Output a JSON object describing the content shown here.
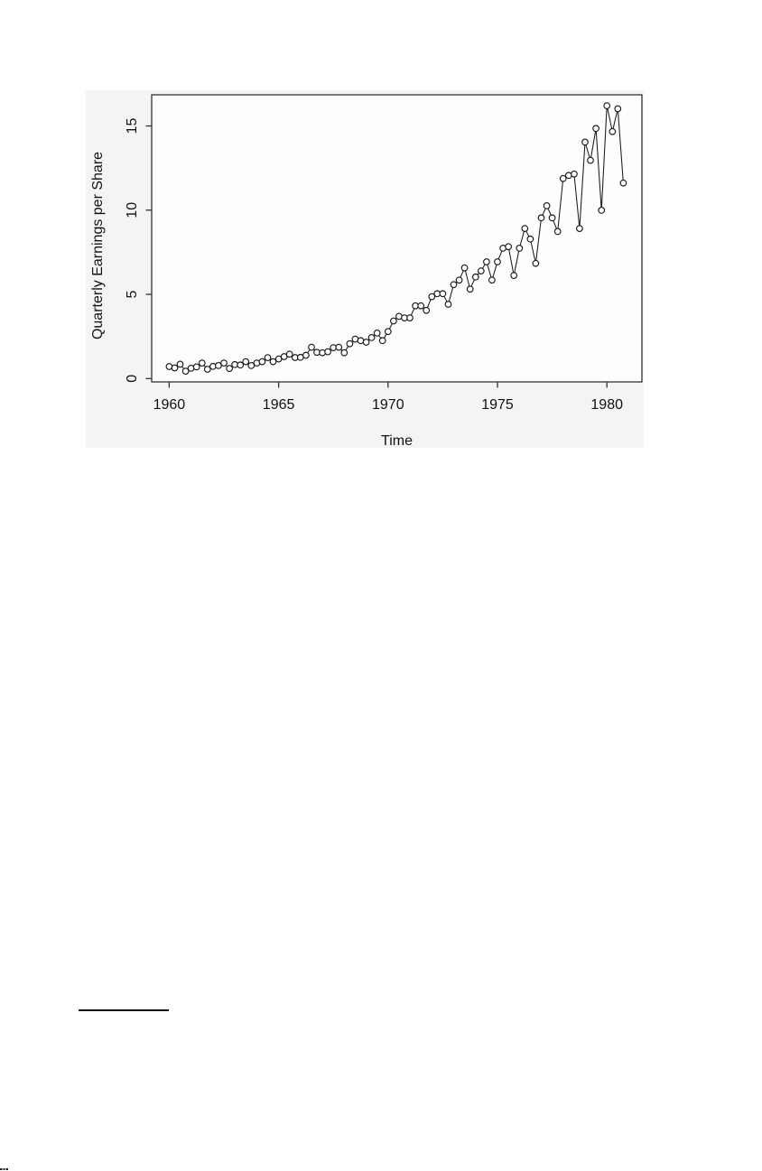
{
  "page": {
    "background": "#ffffff"
  },
  "chart_data": {
    "type": "line",
    "title": "",
    "xlabel": "Time",
    "ylabel": "Quarterly Earnings per Share",
    "x_ticks": [
      1960,
      1965,
      1970,
      1975,
      1980
    ],
    "y_ticks": [
      0,
      5,
      10,
      15
    ],
    "xlim": [
      1959.2,
      1981.6
    ],
    "ylim": [
      -0.2,
      16.85
    ],
    "grid": false,
    "legend": null,
    "marker": "open-circle",
    "line_color": "#1a1a1a",
    "axis_color": "#333333",
    "panel_background": "#fdfdfd",
    "figure_background": "#f4f4f4",
    "series": [
      {
        "name": "Quarterly earnings per share",
        "x_start": 1960,
        "x_step": 0.25,
        "values": [
          0.71,
          0.63,
          0.85,
          0.44,
          0.61,
          0.69,
          0.92,
          0.55,
          0.72,
          0.77,
          0.92,
          0.6,
          0.83,
          0.8,
          1.0,
          0.77,
          0.92,
          1.0,
          1.24,
          1.0,
          1.16,
          1.3,
          1.45,
          1.25,
          1.26,
          1.38,
          1.86,
          1.56,
          1.53,
          1.59,
          1.83,
          1.86,
          1.53,
          2.07,
          2.34,
          2.25,
          2.16,
          2.43,
          2.7,
          2.25,
          2.79,
          3.42,
          3.69,
          3.6,
          3.6,
          4.32,
          4.32,
          4.05,
          4.86,
          5.04,
          5.04,
          4.41,
          5.58,
          5.85,
          6.57,
          5.31,
          6.03,
          6.39,
          6.93,
          5.85,
          6.93,
          7.74,
          7.83,
          6.12,
          7.74,
          8.91,
          8.28,
          6.84,
          9.54,
          10.26,
          9.54,
          8.73,
          11.88,
          12.06,
          12.15,
          8.91,
          14.04,
          12.96,
          14.85,
          9.99,
          16.2,
          14.67,
          16.02,
          11.61
        ]
      }
    ]
  },
  "footnote": {
    "rule_present": true
  },
  "corner_artifact": {
    "pixel_colors": [
      "#222222",
      "#3ab6b6",
      "#222222",
      "#c96fae",
      "#111111"
    ]
  }
}
